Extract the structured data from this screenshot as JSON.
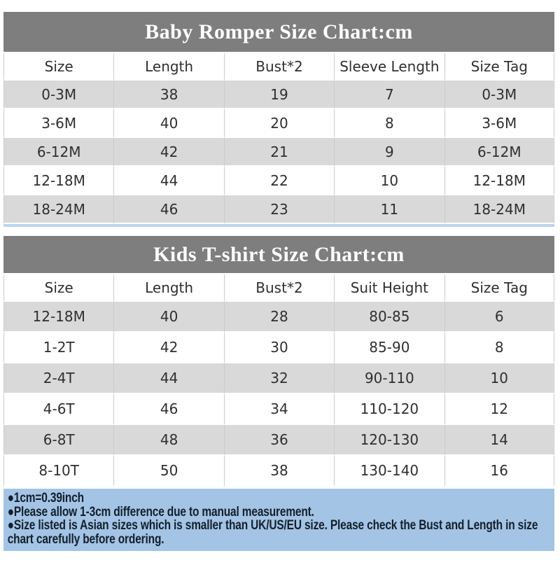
{
  "colors": {
    "band_gray": "#7e7e7e",
    "row_gray": "#d9d9d9",
    "grid_line": "#cccccc",
    "footer_blue": "#a3c4e5",
    "underline_blue": "#bcd5ec",
    "title_text": "#ffffff",
    "cell_text": "#2f2f2f",
    "note_text": "#141f2b"
  },
  "sections": [
    {
      "title": "Baby Romper Size Chart:cm",
      "columns": [
        "Size",
        "Length",
        "Bust*2",
        "Sleeve Length",
        "Size Tag"
      ],
      "rows": [
        [
          "0-3M",
          "38",
          "19",
          "7",
          "0-3M"
        ],
        [
          "3-6M",
          "40",
          "20",
          "8",
          "3-6M"
        ],
        [
          "6-12M",
          "42",
          "21",
          "9",
          "6-12M"
        ],
        [
          "12-18M",
          "44",
          "22",
          "10",
          "12-18M"
        ],
        [
          "18-24M",
          "46",
          "23",
          "11",
          "18-24M"
        ]
      ]
    },
    {
      "title": "Kids T-shirt Size Chart:cm",
      "columns": [
        "Size",
        "Length",
        "Bust*2",
        "Suit Height",
        "Size Tag"
      ],
      "rows": [
        [
          "12-18M",
          "40",
          "28",
          "80-85",
          "6"
        ],
        [
          "1-2T",
          "42",
          "30",
          "85-90",
          "8"
        ],
        [
          "2-4T",
          "44",
          "32",
          "90-110",
          "10"
        ],
        [
          "4-6T",
          "46",
          "34",
          "110-120",
          "12"
        ],
        [
          "6-8T",
          "48",
          "36",
          "120-130",
          "14"
        ],
        [
          "8-10T",
          "50",
          "38",
          "130-140",
          "16"
        ]
      ]
    }
  ],
  "footer": {
    "notes": [
      "●1cm=0.39inch",
      "●Please allow 1-3cm difference due to manual measurement.",
      "●Size listed is Asian sizes which is smaller than UK/US/EU size. Please check the Bust and Length in size chart carefully before ordering."
    ]
  }
}
